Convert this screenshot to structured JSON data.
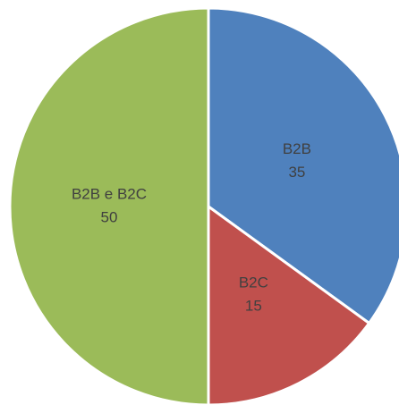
{
  "chart_data": {
    "type": "pie",
    "categories": [
      "B2B",
      "B2C",
      "B2B e B2C"
    ],
    "values": [
      35,
      15,
      50
    ],
    "colors": [
      "#4f81bd",
      "#c0504d",
      "#9bbb59"
    ]
  }
}
